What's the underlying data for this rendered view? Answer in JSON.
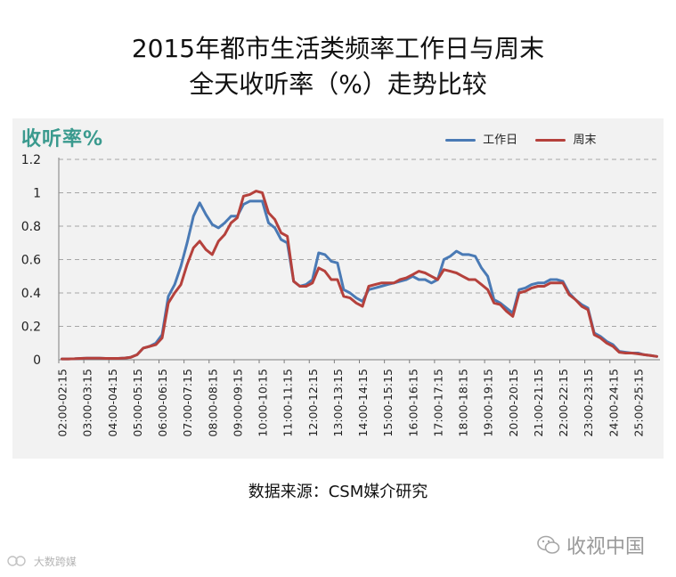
{
  "title_line1": "2015年都市生活类频率工作日与周末",
  "title_line2": "全天收听率（%）走势比较",
  "source": "数据来源：CSM媒介研究",
  "watermark_right": "收视中国",
  "watermark_left": "大数跨媒",
  "colors": {
    "workday": "#4a7ab5",
    "weekend": "#b5413c",
    "ylabel": "#3a9a8e",
    "panel": "#f2f2f2",
    "grid": "#a6a6a6"
  },
  "chart_data": {
    "type": "line",
    "ylabel": "收听率%",
    "ylim": [
      0,
      1.2
    ],
    "yticks": [
      "0",
      "0.2",
      "0.4",
      "0.6",
      "0.8",
      "1",
      "1.2"
    ],
    "grid": true,
    "legend_position": "top-right",
    "categories": [
      "02:00-02:15",
      "02:15-02:30",
      "02:30-02:45",
      "02:45-03:00",
      "03:00-03:15",
      "03:15-03:30",
      "03:30-03:45",
      "03:45-04:00",
      "04:00-04:15",
      "04:15-04:30",
      "04:30-04:45",
      "04:45-05:00",
      "05:00-05:15",
      "05:15-05:30",
      "05:30-05:45",
      "05:45-06:00",
      "06:00-06:15",
      "06:15-06:30",
      "06:30-06:45",
      "06:45-07:00",
      "07:00-07:15",
      "07:15-07:30",
      "07:30-07:45",
      "07:45-08:00",
      "08:00-08:15",
      "08:15-08:30",
      "08:30-08:45",
      "08:45-09:00",
      "09:00-09:15",
      "09:15-09:30",
      "09:30-09:45",
      "09:45-10:00",
      "10:00-10:15",
      "10:15-10:30",
      "10:30-10:45",
      "10:45-11:00",
      "11:00-11:15",
      "11:15-11:30",
      "11:30-11:45",
      "11:45-12:00",
      "12:00-12:15",
      "12:15-12:30",
      "12:30-12:45",
      "12:45-13:00",
      "13:00-13:15",
      "13:15-13:30",
      "13:30-13:45",
      "13:45-14:00",
      "14:00-14:15",
      "14:15-14:30",
      "14:30-14:45",
      "14:45-15:00",
      "15:00-15:15",
      "15:15-15:30",
      "15:30-15:45",
      "15:45-16:00",
      "16:00-16:15",
      "16:15-16:30",
      "16:30-16:45",
      "16:45-17:00",
      "17:00-17:15",
      "17:15-17:30",
      "17:30-17:45",
      "17:45-18:00",
      "18:00-18:15",
      "18:15-18:30",
      "18:30-18:45",
      "18:45-19:00",
      "19:00-19:15",
      "19:15-19:30",
      "19:30-19:45",
      "19:45-20:00",
      "20:00-20:15",
      "20:15-20:30",
      "20:30-20:45",
      "20:45-21:00",
      "21:00-21:15",
      "21:15-21:30",
      "21:30-21:45",
      "21:45-22:00",
      "22:00-22:15",
      "22:15-22:30",
      "22:30-22:45",
      "22:45-23:00",
      "23:00-23:15",
      "23:15-23:30",
      "23:30-23:45",
      "23:45-24:00",
      "24:00-24:15",
      "24:15-24:30",
      "24:30-24:45",
      "24:45-25:00",
      "25:00-25:15",
      "25:15-25:30",
      "25:30-25:45",
      "25:45-26:00"
    ],
    "tick_labels": [
      "02:00-02:15",
      "03:00-03:15",
      "04:00-04:15",
      "05:00-05:15",
      "06:00-06:15",
      "07:00-07:15",
      "08:00-08:15",
      "09:00-09:15",
      "10:00-10:15",
      "11:00-11:15",
      "12:00-12:15",
      "13:00-13:15",
      "14:00-14:15",
      "15:00-15:15",
      "16:00-16:15",
      "17:00-17:15",
      "18:00-18:15",
      "19:00-19:15",
      "20:00-20:15",
      "21:00-21:15",
      "22:00-22:15",
      "23:00-23:15",
      "24:00-24:15",
      "25:00-25:15"
    ],
    "series": [
      {
        "name": "工作日",
        "values": [
          0.005,
          0.005,
          0.006,
          0.008,
          0.009,
          0.009,
          0.009,
          0.008,
          0.008,
          0.008,
          0.01,
          0.015,
          0.03,
          0.07,
          0.08,
          0.1,
          0.15,
          0.38,
          0.45,
          0.56,
          0.7,
          0.86,
          0.94,
          0.87,
          0.81,
          0.79,
          0.82,
          0.86,
          0.86,
          0.93,
          0.95,
          0.95,
          0.95,
          0.82,
          0.79,
          0.72,
          0.7,
          0.47,
          0.44,
          0.45,
          0.48,
          0.64,
          0.63,
          0.59,
          0.58,
          0.42,
          0.4,
          0.37,
          0.35,
          0.42,
          0.43,
          0.44,
          0.45,
          0.46,
          0.47,
          0.48,
          0.5,
          0.48,
          0.48,
          0.46,
          0.48,
          0.6,
          0.62,
          0.65,
          0.63,
          0.63,
          0.62,
          0.55,
          0.5,
          0.36,
          0.34,
          0.31,
          0.28,
          0.42,
          0.43,
          0.45,
          0.46,
          0.46,
          0.48,
          0.48,
          0.47,
          0.4,
          0.36,
          0.33,
          0.31,
          0.16,
          0.14,
          0.11,
          0.09,
          0.05,
          0.045,
          0.04,
          0.04,
          0.03,
          0.025,
          0.02
        ]
      },
      {
        "name": "周末",
        "values": [
          0.005,
          0.005,
          0.006,
          0.008,
          0.009,
          0.009,
          0.009,
          0.008,
          0.008,
          0.008,
          0.01,
          0.015,
          0.03,
          0.07,
          0.08,
          0.09,
          0.13,
          0.34,
          0.4,
          0.45,
          0.57,
          0.67,
          0.71,
          0.66,
          0.63,
          0.71,
          0.75,
          0.82,
          0.85,
          0.98,
          0.99,
          1.01,
          1.0,
          0.88,
          0.84,
          0.76,
          0.74,
          0.47,
          0.44,
          0.44,
          0.46,
          0.55,
          0.53,
          0.48,
          0.48,
          0.38,
          0.37,
          0.34,
          0.32,
          0.44,
          0.45,
          0.46,
          0.46,
          0.46,
          0.48,
          0.49,
          0.51,
          0.53,
          0.52,
          0.5,
          0.48,
          0.54,
          0.53,
          0.52,
          0.5,
          0.48,
          0.48,
          0.45,
          0.42,
          0.34,
          0.33,
          0.29,
          0.26,
          0.4,
          0.41,
          0.43,
          0.44,
          0.44,
          0.46,
          0.46,
          0.46,
          0.39,
          0.36,
          0.32,
          0.3,
          0.15,
          0.13,
          0.1,
          0.08,
          0.045,
          0.04,
          0.04,
          0.035,
          0.03,
          0.025,
          0.02
        ]
      }
    ]
  }
}
